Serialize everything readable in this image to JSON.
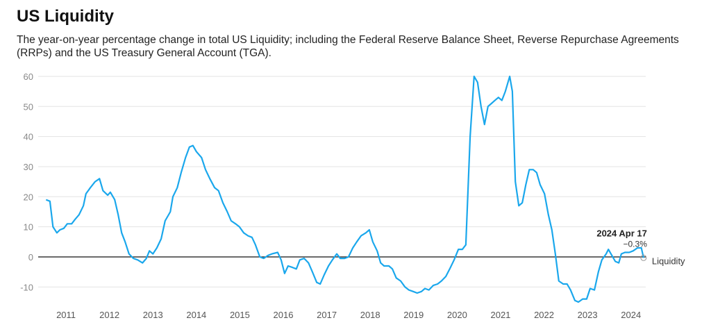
{
  "chart_data": {
    "type": "line",
    "title": "US Liquidity",
    "subtitle": "The year-on-year percentage change in total US Liquidity; including the Federal Reserve Balance Sheet, Reverse Repurchase Agreements (RRPs) and the US Treasury General Account (TGA).",
    "x": [
      2010.54,
      2010.63,
      2010.7,
      2010.79,
      2010.86,
      2010.95,
      2011.03,
      2011.13,
      2011.21,
      2011.3,
      2011.4,
      2011.46,
      2011.56,
      2011.67,
      2011.77,
      2011.85,
      2011.96,
      2012.02,
      2012.12,
      2012.2,
      2012.28,
      2012.36,
      2012.45,
      2012.55,
      2012.65,
      2012.76,
      2012.85,
      2012.92,
      2013.0,
      2013.09,
      2013.19,
      2013.28,
      2013.4,
      2013.46,
      2013.56,
      2013.65,
      2013.75,
      2013.84,
      2013.92,
      2014.0,
      2014.12,
      2014.21,
      2014.31,
      2014.42,
      2014.51,
      2014.61,
      2014.71,
      2014.8,
      2014.9,
      2014.99,
      2015.09,
      2015.19,
      2015.28,
      2015.36,
      2015.46,
      2015.55,
      2015.65,
      2015.74,
      2015.87,
      2015.95,
      2016.03,
      2016.11,
      2016.21,
      2016.3,
      2016.38,
      2016.48,
      2016.58,
      2016.67,
      2016.77,
      2016.85,
      2016.94,
      2017.04,
      2017.13,
      2017.23,
      2017.31,
      2017.41,
      2017.5,
      2017.6,
      2017.69,
      2017.79,
      2017.9,
      2017.98,
      2018.06,
      2018.16,
      2018.24,
      2018.32,
      2018.43,
      2018.51,
      2018.6,
      2018.7,
      2018.8,
      2018.89,
      2018.99,
      2019.08,
      2019.18,
      2019.26,
      2019.35,
      2019.45,
      2019.55,
      2019.64,
      2019.74,
      2019.83,
      2019.93,
      2020.03,
      2020.12,
      2020.2,
      2020.3,
      2020.39,
      2020.47,
      2020.55,
      2020.63,
      2020.71,
      2020.79,
      2020.87,
      2020.95,
      2021.03,
      2021.11,
      2021.21,
      2021.27,
      2021.34,
      2021.42,
      2021.5,
      2021.58,
      2021.66,
      2021.75,
      2021.83,
      2021.91,
      2022.01,
      2022.1,
      2022.18,
      2022.26,
      2022.34,
      2022.44,
      2022.53,
      2022.61,
      2022.71,
      2022.79,
      2022.89,
      2022.98,
      2023.06,
      2023.16,
      2023.25,
      2023.33,
      2023.43,
      2023.48,
      2023.54,
      2023.64,
      2023.72,
      2023.78,
      2023.86,
      2023.96,
      2024.05,
      2024.15,
      2024.24,
      2024.29
    ],
    "series": [
      {
        "name": "Liquidity",
        "color": "#1aa7ec",
        "values": [
          19,
          18.5,
          10,
          8,
          9,
          9.5,
          11,
          11,
          12.5,
          14,
          17,
          21,
          23,
          25,
          26,
          22,
          20.5,
          21.5,
          19,
          14,
          8,
          5,
          1,
          -0.5,
          -1,
          -2,
          -0.5,
          2,
          1,
          3,
          6,
          12,
          15,
          20,
          23,
          28,
          33,
          36.5,
          37,
          35,
          33,
          29,
          26,
          23,
          22,
          18,
          15,
          12,
          11,
          10,
          8,
          7,
          6.5,
          4,
          0,
          -0.5,
          0.5,
          1,
          1.5,
          -1,
          -5.5,
          -3,
          -3.5,
          -4,
          -1,
          -0.5,
          -2,
          -5,
          -8.5,
          -9,
          -6,
          -3,
          -1,
          1,
          -0.5,
          -0.5,
          0,
          3,
          5,
          7,
          8,
          9,
          5,
          2,
          -2,
          -3,
          -3,
          -4,
          -7,
          -8,
          -10,
          -11,
          -11.5,
          -12,
          -11.5,
          -10.5,
          -11,
          -9.5,
          -9,
          -8,
          -6.5,
          -4,
          -1,
          2.5,
          2.5,
          4,
          40,
          60,
          58,
          50,
          44,
          50,
          51,
          52,
          53,
          52,
          55,
          60,
          55,
          25,
          17,
          18,
          24,
          29,
          29,
          28,
          24,
          21,
          14,
          9,
          1,
          -8,
          -9,
          -9,
          -11,
          -14.5,
          -15,
          -14,
          -14,
          -10.5,
          -11,
          -5,
          -1,
          1,
          2.5,
          1,
          -1.5,
          -2,
          1,
          1.5,
          1.5,
          2,
          3,
          3,
          -0.3
        ]
      }
    ],
    "annotations": [
      {
        "text": "2024 Apr 17"
      },
      {
        "text": "−0.3%"
      }
    ],
    "xlim": [
      2010.36,
      2024.34
    ],
    "xticks": [
      2011,
      2012,
      2013,
      2014,
      2015,
      2016,
      2017,
      2018,
      2019,
      2020,
      2021,
      2022,
      2023,
      2024
    ],
    "ylim": [
      -16,
      62
    ],
    "yticks": [
      -10,
      0,
      10,
      20,
      30,
      40,
      50,
      60
    ],
    "grid": true
  }
}
